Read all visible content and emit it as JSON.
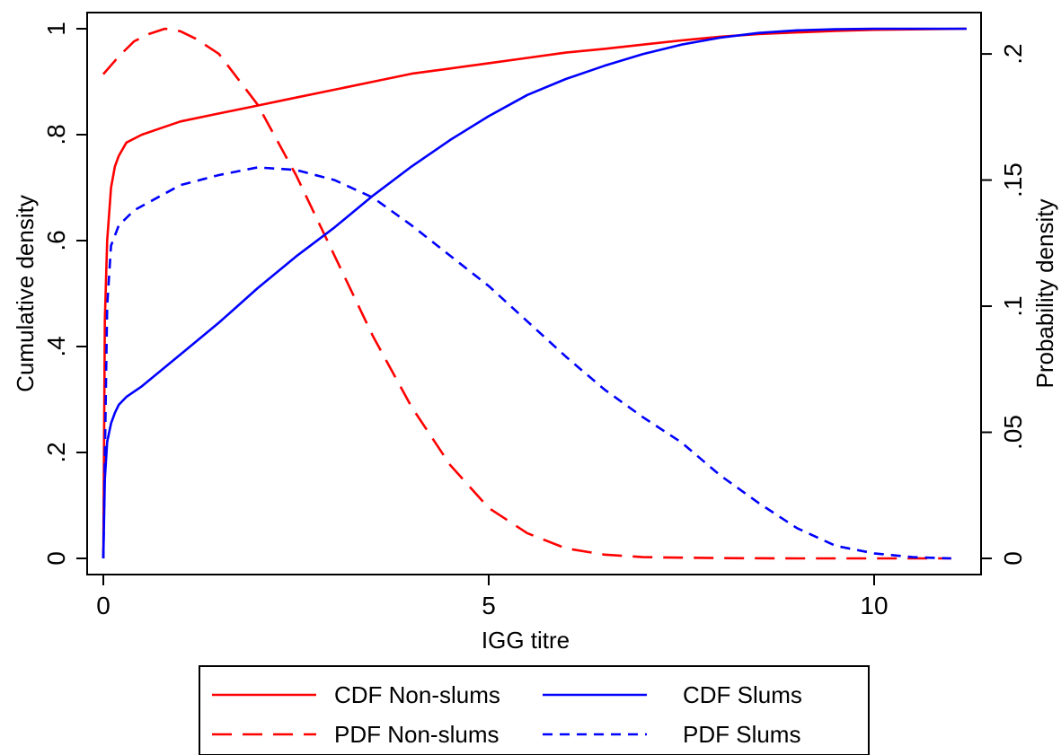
{
  "chart_data": {
    "type": "line",
    "xlabel": "IGG titre",
    "ylabel_left": "Cumulative density",
    "ylabel_right": "Probability density",
    "xlim": [
      0,
      11.2
    ],
    "ylim_left": [
      0,
      1
    ],
    "ylim_right": [
      0,
      0.21
    ],
    "xticks": [
      {
        "v": 0,
        "label": "0"
      },
      {
        "v": 5,
        "label": "5"
      },
      {
        "v": 10,
        "label": "10"
      }
    ],
    "yticks_left": [
      {
        "v": 0,
        "label": "0"
      },
      {
        "v": 0.2,
        "label": ".2"
      },
      {
        "v": 0.4,
        "label": ".4"
      },
      {
        "v": 0.6,
        "label": ".6"
      },
      {
        "v": 0.8,
        "label": ".8"
      },
      {
        "v": 1,
        "label": "1"
      }
    ],
    "yticks_right": [
      {
        "v": 0,
        "label": "0"
      },
      {
        "v": 0.05,
        "label": ".05"
      },
      {
        "v": 0.1,
        "label": ".1"
      },
      {
        "v": 0.15,
        "label": ".15"
      },
      {
        "v": 0.2,
        "label": ".2"
      }
    ],
    "grid": false,
    "legend_position": "bottom",
    "series": [
      {
        "name": "CDF Non-slums",
        "axis": "left",
        "color": "#ff0000",
        "dash": "solid",
        "x": [
          0,
          0.02,
          0.05,
          0.1,
          0.15,
          0.2,
          0.3,
          0.5,
          0.8,
          1.0,
          1.5,
          2.0,
          2.5,
          3.0,
          3.5,
          4.0,
          4.5,
          5.0,
          5.5,
          6.0,
          6.5,
          7.0,
          7.5,
          8.0,
          8.5,
          9.0,
          9.5,
          10.0,
          11.2
        ],
        "y": [
          0,
          0.45,
          0.6,
          0.7,
          0.74,
          0.76,
          0.785,
          0.8,
          0.815,
          0.825,
          0.84,
          0.855,
          0.87,
          0.885,
          0.9,
          0.915,
          0.925,
          0.935,
          0.945,
          0.955,
          0.962,
          0.97,
          0.978,
          0.985,
          0.99,
          0.993,
          0.996,
          0.998,
          1.0
        ]
      },
      {
        "name": "PDF Non-slums",
        "axis": "right",
        "color": "#ff0000",
        "dash": "long",
        "x": [
          0,
          0.2,
          0.4,
          0.6,
          0.8,
          1.0,
          1.2,
          1.5,
          2.0,
          2.5,
          3.0,
          3.5,
          4.0,
          4.5,
          5.0,
          5.5,
          6.0,
          6.5,
          7.0,
          8.0,
          9.0,
          10.0,
          11.0
        ],
        "y": [
          0.192,
          0.199,
          0.205,
          0.208,
          0.21,
          0.209,
          0.206,
          0.2,
          0.18,
          0.152,
          0.12,
          0.088,
          0.06,
          0.037,
          0.02,
          0.01,
          0.004,
          0.0015,
          0.0005,
          0.0001,
          0,
          0,
          0
        ]
      },
      {
        "name": "CDF Slums",
        "axis": "left",
        "color": "#0000ff",
        "dash": "solid",
        "x": [
          0,
          0.02,
          0.05,
          0.1,
          0.15,
          0.2,
          0.3,
          0.5,
          1.0,
          1.5,
          2.0,
          2.5,
          3.0,
          3.5,
          4.0,
          4.5,
          5.0,
          5.5,
          6.0,
          6.5,
          7.0,
          7.5,
          8.0,
          8.5,
          9.0,
          9.5,
          10.0,
          10.5,
          11.2
        ],
        "y": [
          0,
          0.15,
          0.22,
          0.255,
          0.275,
          0.29,
          0.305,
          0.325,
          0.385,
          0.445,
          0.51,
          0.57,
          0.625,
          0.685,
          0.74,
          0.79,
          0.835,
          0.875,
          0.905,
          0.93,
          0.952,
          0.97,
          0.983,
          0.992,
          0.997,
          0.999,
          1.0,
          1.0,
          1.0
        ]
      },
      {
        "name": "PDF Slums",
        "axis": "right",
        "color": "#0000ff",
        "dash": "short",
        "x": [
          0,
          0.05,
          0.1,
          0.2,
          0.4,
          0.7,
          1.0,
          1.5,
          2.0,
          2.5,
          3.0,
          3.5,
          4.0,
          4.5,
          5.0,
          5.5,
          6.0,
          6.5,
          7.0,
          7.5,
          8.0,
          8.5,
          9.0,
          9.5,
          10.0,
          10.5,
          11.0
        ],
        "y": [
          0,
          0.1,
          0.124,
          0.132,
          0.138,
          0.143,
          0.148,
          0.152,
          0.155,
          0.154,
          0.15,
          0.143,
          0.132,
          0.12,
          0.108,
          0.094,
          0.08,
          0.067,
          0.056,
          0.046,
          0.033,
          0.022,
          0.012,
          0.005,
          0.002,
          0.0005,
          0
        ]
      }
    ],
    "legend": [
      {
        "label": "CDF Non-slums",
        "color": "#ff0000",
        "dash": "solid"
      },
      {
        "label": "CDF Slums",
        "color": "#0000ff",
        "dash": "solid"
      },
      {
        "label": "PDF Non-slums",
        "color": "#ff0000",
        "dash": "long"
      },
      {
        "label": "PDF Slums",
        "color": "#0000ff",
        "dash": "short"
      }
    ]
  }
}
